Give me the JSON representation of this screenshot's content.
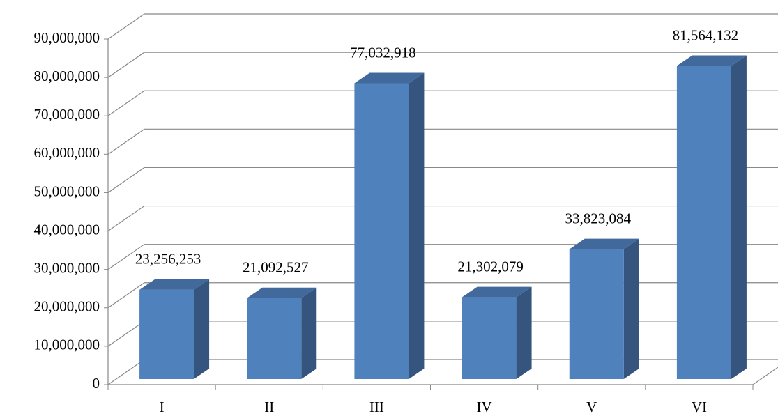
{
  "chart_data": {
    "type": "bar3d",
    "categories": [
      "I",
      "II",
      "III",
      "IV",
      "V",
      "VI"
    ],
    "values": [
      23256253,
      21092527,
      77032918,
      21302079,
      33823084,
      81564132
    ],
    "value_labels": [
      "23,256,253",
      "21,092,527",
      "77,032,918",
      "21,302,079",
      "33,823,084",
      "81,564,132"
    ],
    "color": "#4f81bd",
    "ylim": [
      0,
      90000000
    ],
    "yticks": [
      0,
      {
        "value": 10000000,
        "label": "10,000,000"
      },
      {
        "value": 20000000,
        "label": "20,000,000"
      },
      {
        "value": 30000000,
        "label": "30,000,000"
      },
      {
        "value": 40000000,
        "label": "40,000,000"
      },
      {
        "value": 50000000,
        "label": "50,000,000"
      },
      {
        "value": 60000000,
        "label": "60,000,000"
      },
      {
        "value": 70000000,
        "label": "70,000,000"
      },
      {
        "value": 80000000,
        "label": "80,000,000"
      },
      {
        "value": 90000000,
        "label": "90,000,000"
      }
    ],
    "grid": true
  }
}
